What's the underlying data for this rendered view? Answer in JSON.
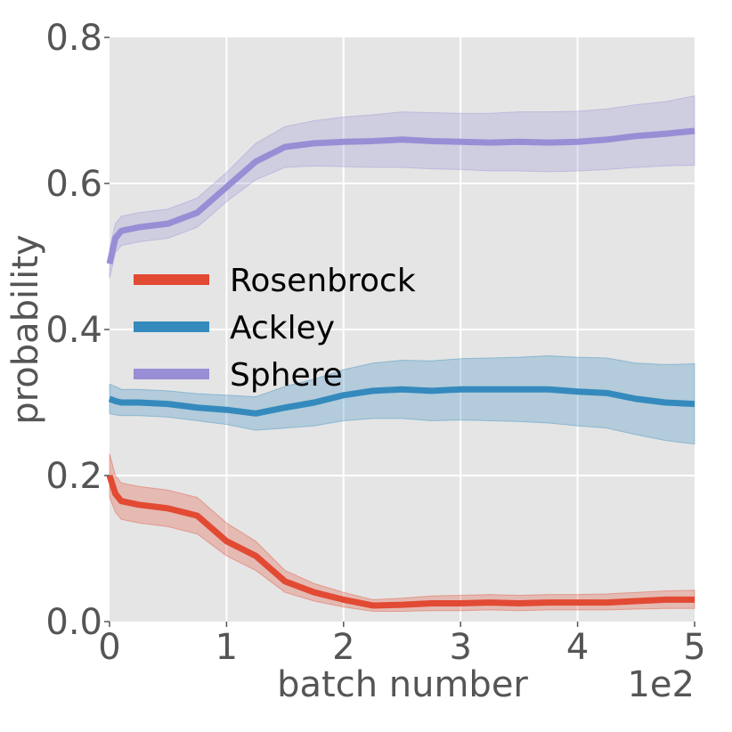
{
  "chart_data": {
    "type": "line",
    "title": "",
    "xlabel": "batch number",
    "ylabel": "probability",
    "x_offset_label": "1e2",
    "xlim": [
      0,
      5
    ],
    "ylim": [
      0,
      0.8
    ],
    "x_ticks": [
      0,
      1,
      2,
      3,
      4,
      5
    ],
    "y_ticks": [
      0.0,
      0.2,
      0.4,
      0.6,
      0.8
    ],
    "x_tick_labels": [
      "0",
      "1",
      "2",
      "3",
      "4",
      "5"
    ],
    "y_tick_labels": [
      "0.0",
      "0.2",
      "0.4",
      "0.6",
      "0.8"
    ],
    "grid": true,
    "legend_position": "center-left",
    "x": [
      0,
      0.05,
      0.1,
      0.25,
      0.5,
      0.75,
      1.0,
      1.25,
      1.5,
      1.75,
      2.0,
      2.25,
      2.5,
      2.75,
      3.0,
      3.25,
      3.5,
      3.75,
      4.0,
      4.25,
      4.5,
      4.75,
      5.0
    ],
    "series": [
      {
        "name": "Rosenbrock",
        "color": "#E24A33",
        "values": [
          0.2,
          0.175,
          0.165,
          0.16,
          0.155,
          0.145,
          0.11,
          0.09,
          0.055,
          0.04,
          0.03,
          0.022,
          0.023,
          0.025,
          0.025,
          0.026,
          0.025,
          0.026,
          0.026,
          0.026,
          0.028,
          0.03,
          0.03
        ],
        "lower": [
          0.17,
          0.15,
          0.14,
          0.135,
          0.13,
          0.12,
          0.09,
          0.07,
          0.04,
          0.028,
          0.02,
          0.014,
          0.014,
          0.015,
          0.015,
          0.016,
          0.015,
          0.016,
          0.016,
          0.016,
          0.017,
          0.018,
          0.018
        ],
        "upper": [
          0.23,
          0.2,
          0.19,
          0.185,
          0.18,
          0.17,
          0.135,
          0.11,
          0.07,
          0.052,
          0.04,
          0.03,
          0.032,
          0.035,
          0.036,
          0.037,
          0.036,
          0.037,
          0.037,
          0.038,
          0.04,
          0.042,
          0.043
        ]
      },
      {
        "name": "Ackley",
        "color": "#348ABD",
        "values": [
          0.305,
          0.302,
          0.3,
          0.3,
          0.298,
          0.293,
          0.29,
          0.285,
          0.293,
          0.3,
          0.31,
          0.316,
          0.318,
          0.316,
          0.318,
          0.318,
          0.318,
          0.318,
          0.315,
          0.313,
          0.305,
          0.3,
          0.298
        ],
        "lower": [
          0.285,
          0.283,
          0.282,
          0.282,
          0.28,
          0.275,
          0.27,
          0.262,
          0.265,
          0.268,
          0.275,
          0.278,
          0.278,
          0.275,
          0.276,
          0.275,
          0.274,
          0.272,
          0.268,
          0.265,
          0.256,
          0.248,
          0.243
        ],
        "upper": [
          0.325,
          0.322,
          0.318,
          0.318,
          0.316,
          0.312,
          0.31,
          0.308,
          0.322,
          0.332,
          0.345,
          0.354,
          0.358,
          0.357,
          0.36,
          0.361,
          0.362,
          0.364,
          0.362,
          0.361,
          0.354,
          0.352,
          0.353
        ]
      },
      {
        "name": "Sphere",
        "color": "#988ED5",
        "values": [
          0.49,
          0.525,
          0.535,
          0.54,
          0.545,
          0.56,
          0.595,
          0.63,
          0.65,
          0.655,
          0.657,
          0.658,
          0.66,
          0.658,
          0.657,
          0.656,
          0.657,
          0.656,
          0.657,
          0.66,
          0.665,
          0.668,
          0.672
        ],
        "lower": [
          0.47,
          0.505,
          0.515,
          0.52,
          0.525,
          0.54,
          0.575,
          0.605,
          0.622,
          0.624,
          0.623,
          0.622,
          0.622,
          0.62,
          0.619,
          0.617,
          0.617,
          0.616,
          0.617,
          0.619,
          0.622,
          0.624,
          0.625
        ],
        "upper": [
          0.51,
          0.545,
          0.555,
          0.56,
          0.565,
          0.58,
          0.615,
          0.655,
          0.678,
          0.686,
          0.691,
          0.694,
          0.698,
          0.697,
          0.696,
          0.696,
          0.698,
          0.698,
          0.699,
          0.702,
          0.708,
          0.712,
          0.72
        ]
      }
    ]
  }
}
